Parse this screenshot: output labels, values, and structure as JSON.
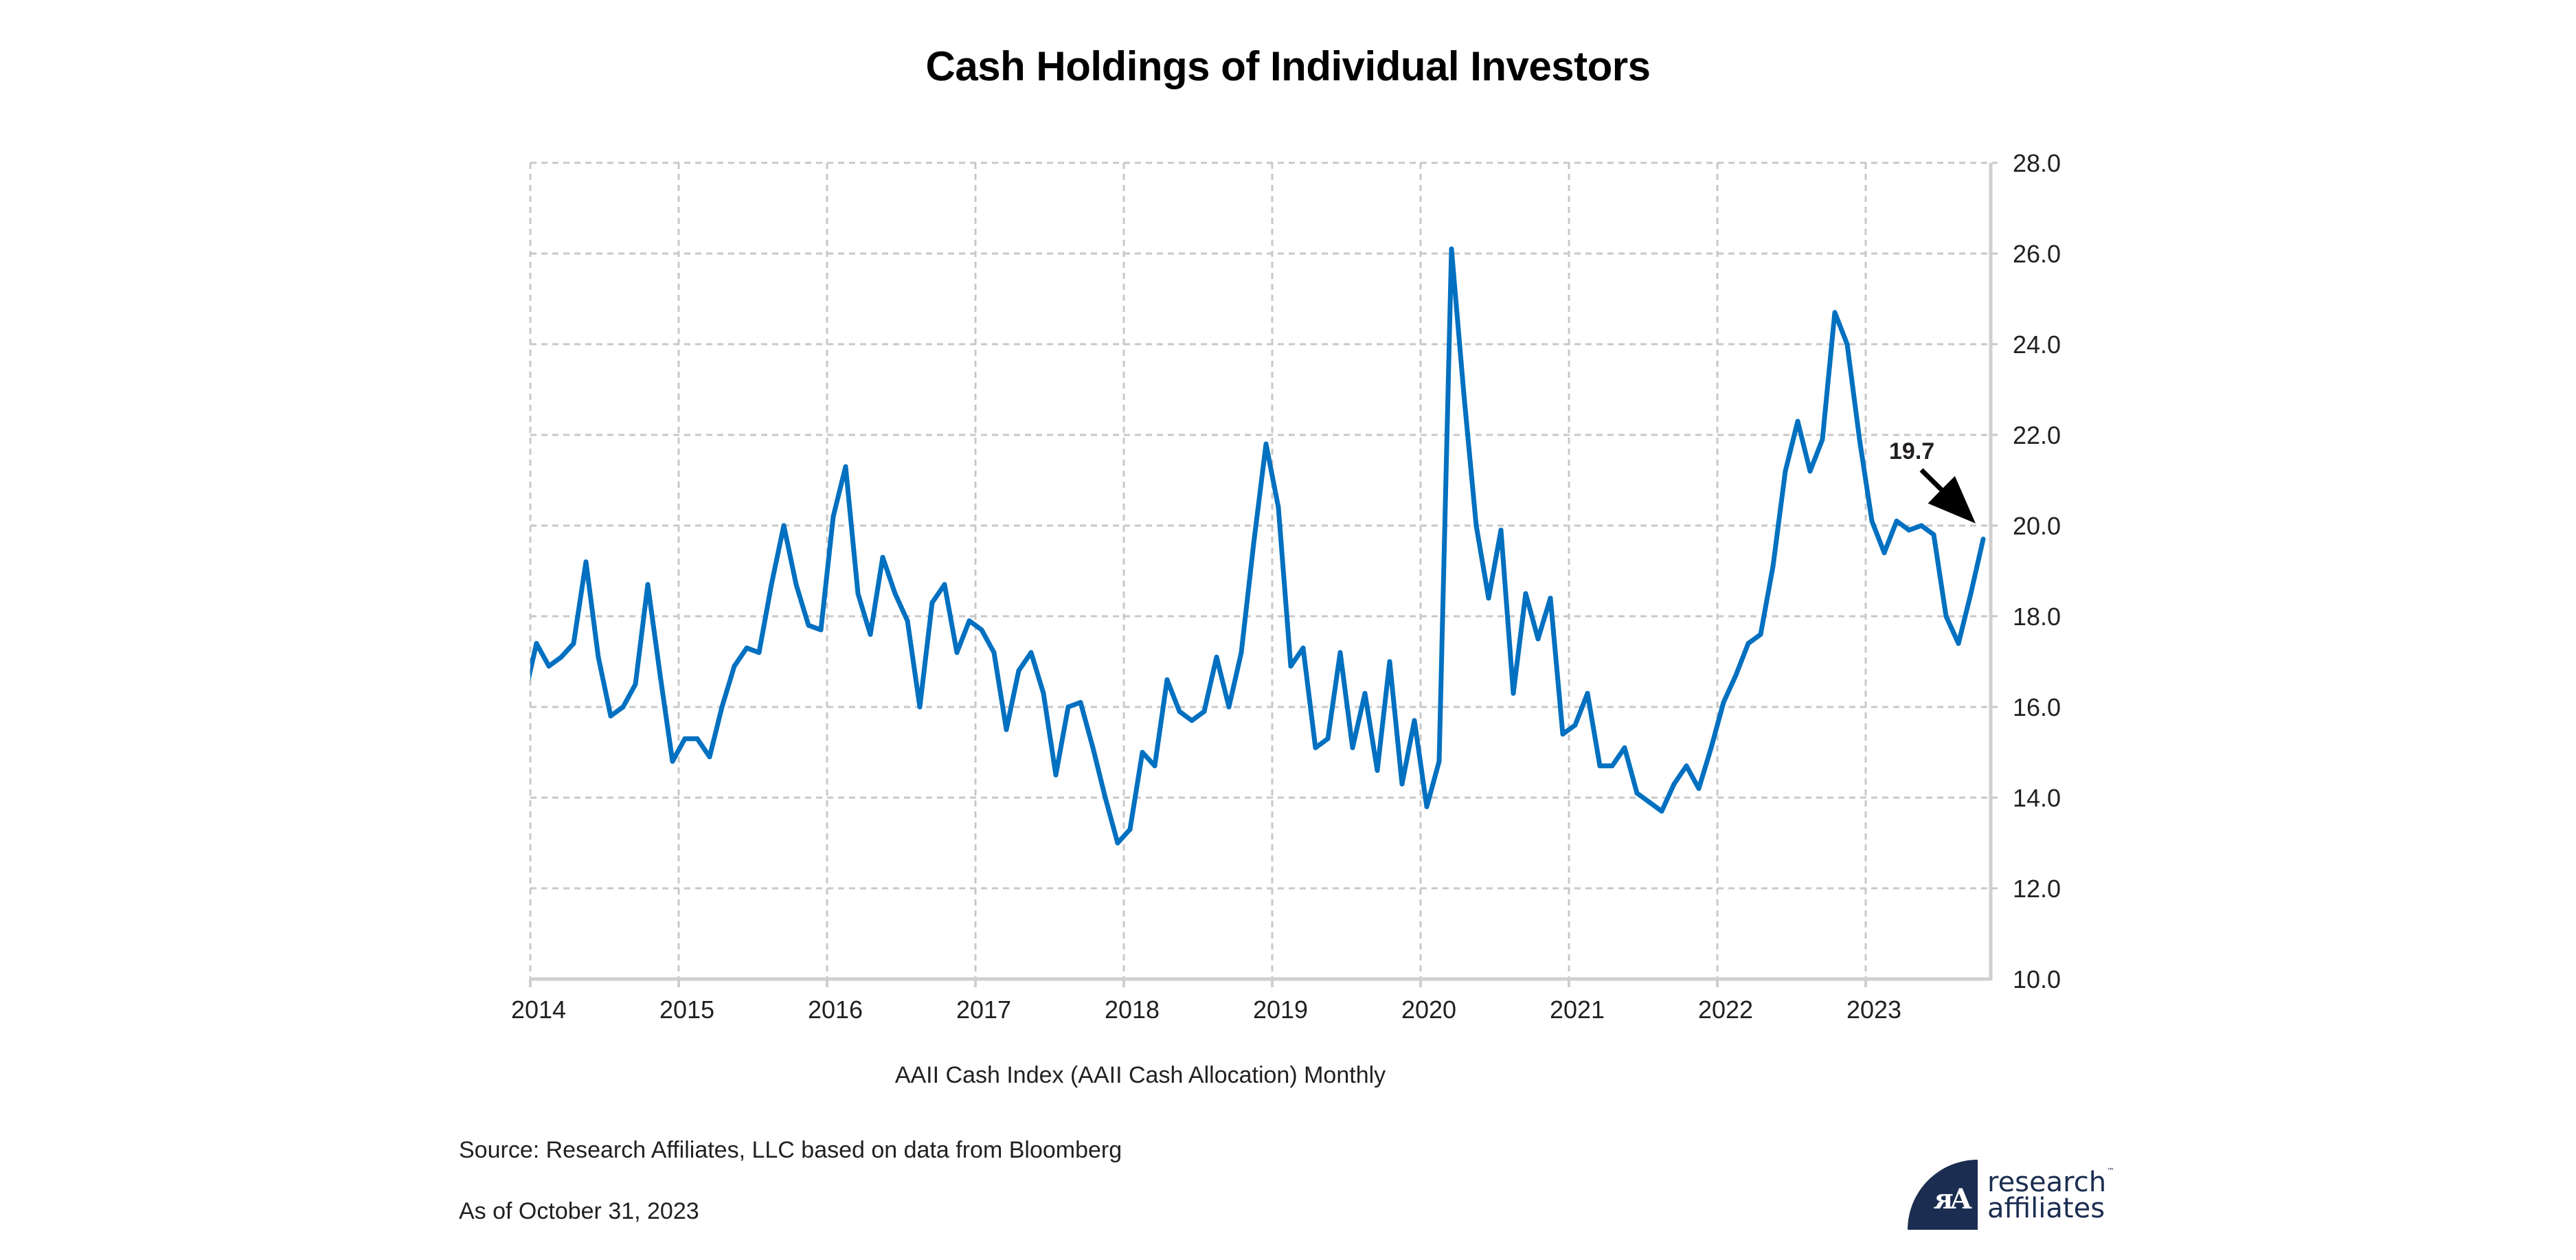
{
  "chart_data": {
    "type": "line",
    "title": "Cash Holdings of Individual Investors",
    "xlabel": "AAII Cash Index (AAII Cash Allocation) Monthly",
    "ylabel": "",
    "ylim": [
      10,
      28
    ],
    "yticks": [
      "10.0",
      "12.0",
      "14.0",
      "16.0",
      "18.0",
      "20.0",
      "22.0",
      "24.0",
      "26.0",
      "28.0"
    ],
    "ytick_values": [
      10,
      12,
      14,
      16,
      18,
      20,
      22,
      24,
      26,
      28
    ],
    "xticks": [
      "2014",
      "2015",
      "2016",
      "2017",
      "2018",
      "2019",
      "2020",
      "2021",
      "2022",
      "2023"
    ],
    "grid": true,
    "y_axis_position": "right",
    "legend": "none",
    "line_color": "#0070c0",
    "series": [
      {
        "name": "AAII Cash Index (AAII Cash Allocation) Monthly",
        "start": "2013-12",
        "frequency": "monthly",
        "values": [
          16.2,
          17.4,
          16.9,
          17.1,
          17.4,
          19.2,
          17.1,
          15.8,
          16.0,
          16.5,
          18.7,
          16.7,
          14.8,
          15.3,
          15.3,
          14.9,
          16.0,
          16.9,
          17.3,
          17.2,
          18.7,
          20.0,
          18.7,
          17.8,
          17.7,
          20.2,
          21.3,
          18.5,
          17.6,
          19.3,
          18.5,
          17.9,
          16.0,
          18.3,
          18.7,
          17.2,
          17.9,
          17.7,
          17.2,
          15.5,
          16.8,
          17.2,
          16.3,
          14.5,
          16.0,
          16.1,
          15.1,
          14.0,
          13.0,
          13.3,
          15.0,
          14.7,
          16.6,
          15.9,
          15.7,
          15.9,
          17.1,
          16.0,
          17.2,
          19.6,
          21.8,
          20.4,
          16.9,
          17.3,
          15.1,
          15.3,
          17.2,
          15.1,
          16.3,
          14.6,
          17.0,
          14.3,
          15.7,
          13.8,
          14.8,
          26.1,
          22.9,
          20.0,
          18.4,
          19.9,
          16.3,
          18.5,
          17.5,
          18.4,
          15.4,
          15.6,
          16.3,
          14.7,
          14.7,
          15.1,
          14.1,
          13.9,
          13.7,
          14.3,
          14.7,
          14.2,
          15.1,
          16.1,
          16.7,
          17.4,
          17.6,
          19.1,
          21.2,
          22.3,
          21.2,
          21.9,
          24.7,
          24.0,
          21.9,
          20.1,
          19.4,
          20.1,
          19.9,
          20.0,
          19.8,
          18.0,
          17.4,
          18.5,
          19.7
        ]
      }
    ],
    "annotations": [
      {
        "text": "19.7",
        "points_to": "2023-10",
        "value": 19.7
      }
    ]
  },
  "footer": {
    "source": "Source: Research Affiliates, LLC based on data from Bloomberg",
    "as_of": "As of October 31, 2023"
  },
  "logo": {
    "line1": "research",
    "line2": "affiliates",
    "trademark": "™",
    "glyph": "ᴙA",
    "color": "#1b2d50"
  }
}
